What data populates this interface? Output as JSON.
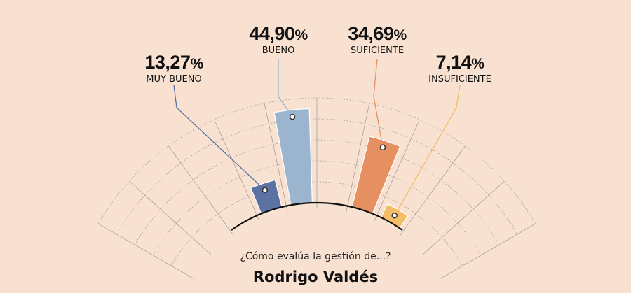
{
  "chart_data": {
    "type": "bar",
    "layout": "radial-fan",
    "question": "¿Cómo evalúa la gestión de...?",
    "subject": "Rodrigo Valdés",
    "value_suffix": "%",
    "ylim": [
      0,
      50
    ],
    "grid": true,
    "categories": [
      "MUY BUENO",
      "BUENO",
      "SUFICIENTE",
      "INSUFICIENTE"
    ],
    "values": [
      13.27,
      44.9,
      34.69,
      7.14
    ],
    "value_labels": [
      "13,27",
      "44,90",
      "34,69",
      "7,14"
    ],
    "colors": [
      "#5b72a3",
      "#9bb5cf",
      "#e69062",
      "#f4bd6a"
    ],
    "grid_color": "#999999",
    "arc_color": "#111111"
  }
}
